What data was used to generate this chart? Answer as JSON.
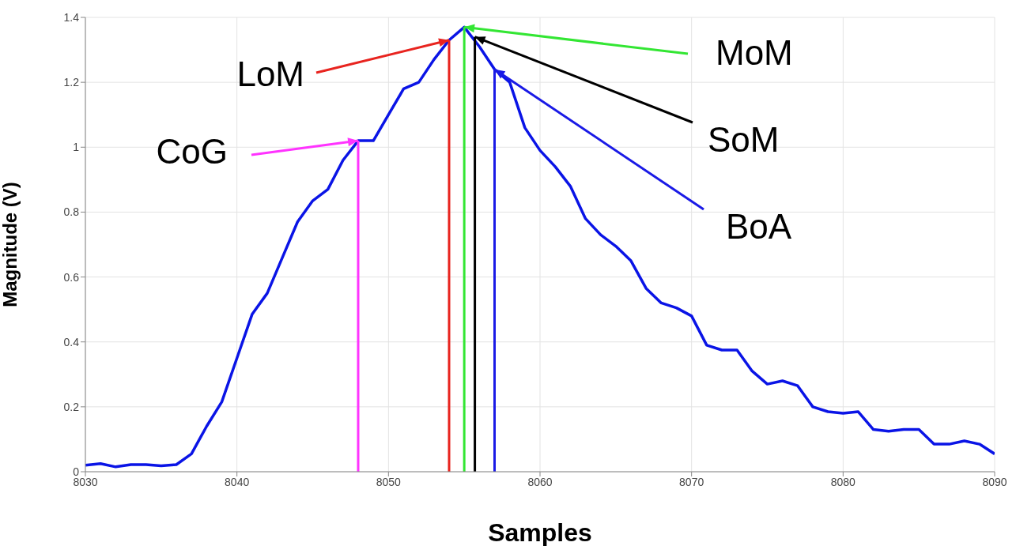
{
  "chart_data": {
    "type": "line",
    "xlabel": "Samples",
    "ylabel": "Magnitude (V)",
    "x": [
      8030,
      8031,
      8032,
      8033,
      8034,
      8035,
      8036,
      8037,
      8038,
      8039,
      8040,
      8041,
      8042,
      8043,
      8044,
      8045,
      8046,
      8047,
      8048,
      8049,
      8050,
      8051,
      8052,
      8053,
      8054,
      8055,
      8056,
      8057,
      8058,
      8059,
      8060,
      8061,
      8062,
      8063,
      8064,
      8065,
      8066,
      8067,
      8068,
      8069,
      8070,
      8071,
      8072,
      8073,
      8074,
      8075,
      8076,
      8077,
      8078,
      8079,
      8080,
      8081,
      8082,
      8083,
      8084,
      8085,
      8086,
      8087,
      8088,
      8089,
      8090
    ],
    "series": [
      {
        "color": "#0a14e6",
        "values": [
          0.02,
          0.025,
          0.015,
          0.022,
          0.022,
          0.018,
          0.022,
          0.055,
          0.14,
          0.215,
          0.35,
          0.485,
          0.55,
          0.66,
          0.77,
          0.835,
          0.87,
          0.96,
          1.02,
          1.02,
          1.1,
          1.18,
          1.2,
          1.27,
          1.33,
          1.37,
          1.31,
          1.24,
          1.2,
          1.06,
          0.99,
          0.94,
          0.88,
          0.78,
          0.73,
          0.695,
          0.65,
          0.565,
          0.52,
          0.505,
          0.48,
          0.39,
          0.375,
          0.375,
          0.31,
          0.27,
          0.28,
          0.265,
          0.2,
          0.185,
          0.18,
          0.185,
          0.13,
          0.125,
          0.13,
          0.13,
          0.085,
          0.085,
          0.095,
          0.085,
          0.055
        ]
      },
      {
        "type": "line",
        "color": "#ff33ff",
        "x": [
          8048,
          8048
        ],
        "values": [
          0,
          1.02
        ]
      },
      {
        "type": "line",
        "color": "#e8241f",
        "x": [
          8054,
          8054
        ],
        "values": [
          0,
          1.33
        ]
      },
      {
        "type": "line",
        "color": "#33e633",
        "x": [
          8055,
          8055
        ],
        "values": [
          0,
          1.37
        ]
      },
      {
        "type": "line",
        "color": "#000000",
        "x": [
          8055.7,
          8055.7
        ],
        "values": [
          0,
          1.34
        ]
      },
      {
        "type": "line",
        "color": "#1a1ae6",
        "x": [
          8057,
          8057
        ],
        "values": [
          0,
          1.24
        ]
      }
    ],
    "xlim": [
      8030,
      8090
    ],
    "xticks": [
      8030,
      8040,
      8050,
      8060,
      8070,
      8080,
      8090
    ],
    "ylim": [
      0,
      1.4
    ],
    "yticks": [
      0,
      0.2,
      0.4,
      0.6,
      0.8,
      1,
      1.2,
      1.4
    ],
    "grid": true,
    "marker": "none",
    "line_style": "solid",
    "annotations": [
      {
        "text": "CoG",
        "x": 8048,
        "y": 1.02
      },
      {
        "text": "LoM",
        "x": 8054,
        "y": 1.33
      },
      {
        "text": "MoM",
        "x": 8055,
        "y": 1.37
      },
      {
        "text": "SoM",
        "x": 8055.7,
        "y": 1.34
      },
      {
        "text": "BoA",
        "x": 8057,
        "y": 1.24
      }
    ]
  }
}
